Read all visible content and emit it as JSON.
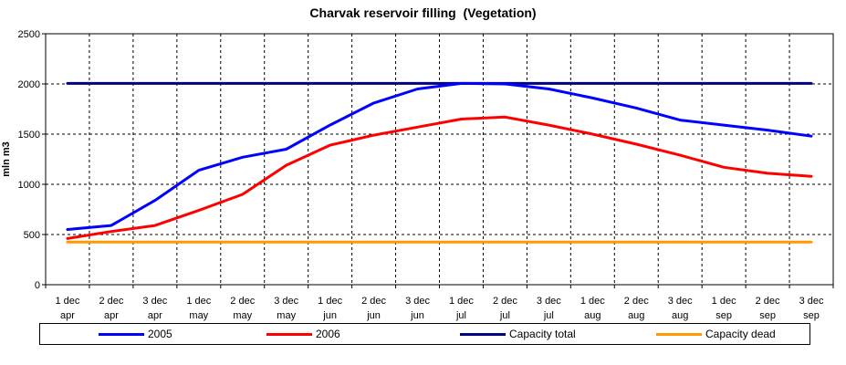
{
  "chart_data": {
    "type": "line",
    "title": "Charvak reservoir filling  (Vegetation)",
    "xlabel": "",
    "ylabel": "mln m3",
    "ylim": [
      0,
      2500
    ],
    "yticks": [
      0,
      500,
      1000,
      1500,
      2000,
      2500
    ],
    "grid": true,
    "legend_position": "bottom",
    "categories": [
      [
        "1 dec",
        "apr"
      ],
      [
        "2 dec",
        "apr"
      ],
      [
        "3 dec",
        "apr"
      ],
      [
        "1 dec",
        "may"
      ],
      [
        "2 dec",
        "may"
      ],
      [
        "3 dec",
        "may"
      ],
      [
        "1 dec",
        "jun"
      ],
      [
        "2 dec",
        "jun"
      ],
      [
        "3 dec",
        "jun"
      ],
      [
        "1 dec",
        "jul"
      ],
      [
        "2 dec",
        "jul"
      ],
      [
        "3 dec",
        "jul"
      ],
      [
        "1 dec",
        "aug"
      ],
      [
        "2 dec",
        "aug"
      ],
      [
        "3 dec",
        "aug"
      ],
      [
        "1 dec",
        "sep"
      ],
      [
        "2 dec",
        "sep"
      ],
      [
        "3 dec",
        "sep"
      ]
    ],
    "series": [
      {
        "name": "2005",
        "color": "#0000FF",
        "values": [
          550,
          590,
          840,
          1140,
          1270,
          1350,
          1590,
          1810,
          1950,
          2005,
          2000,
          1950,
          1860,
          1760,
          1640,
          1590,
          1540,
          1480
        ]
      },
      {
        "name": "2006",
        "color": "#FF0000",
        "values": [
          460,
          530,
          590,
          740,
          900,
          1190,
          1390,
          1490,
          1570,
          1650,
          1670,
          1590,
          1500,
          1400,
          1290,
          1170,
          1110,
          1080
        ]
      },
      {
        "name": "Capacity total",
        "color": "#000080",
        "values": [
          2005,
          2005,
          2005,
          2005,
          2005,
          2005,
          2005,
          2005,
          2005,
          2005,
          2005,
          2005,
          2005,
          2005,
          2005,
          2005,
          2005,
          2005
        ]
      },
      {
        "name": "Capacity dead",
        "color": "#FF9900",
        "values": [
          425,
          425,
          425,
          425,
          425,
          425,
          425,
          425,
          425,
          425,
          425,
          425,
          425,
          425,
          425,
          425,
          425,
          425
        ]
      }
    ]
  }
}
